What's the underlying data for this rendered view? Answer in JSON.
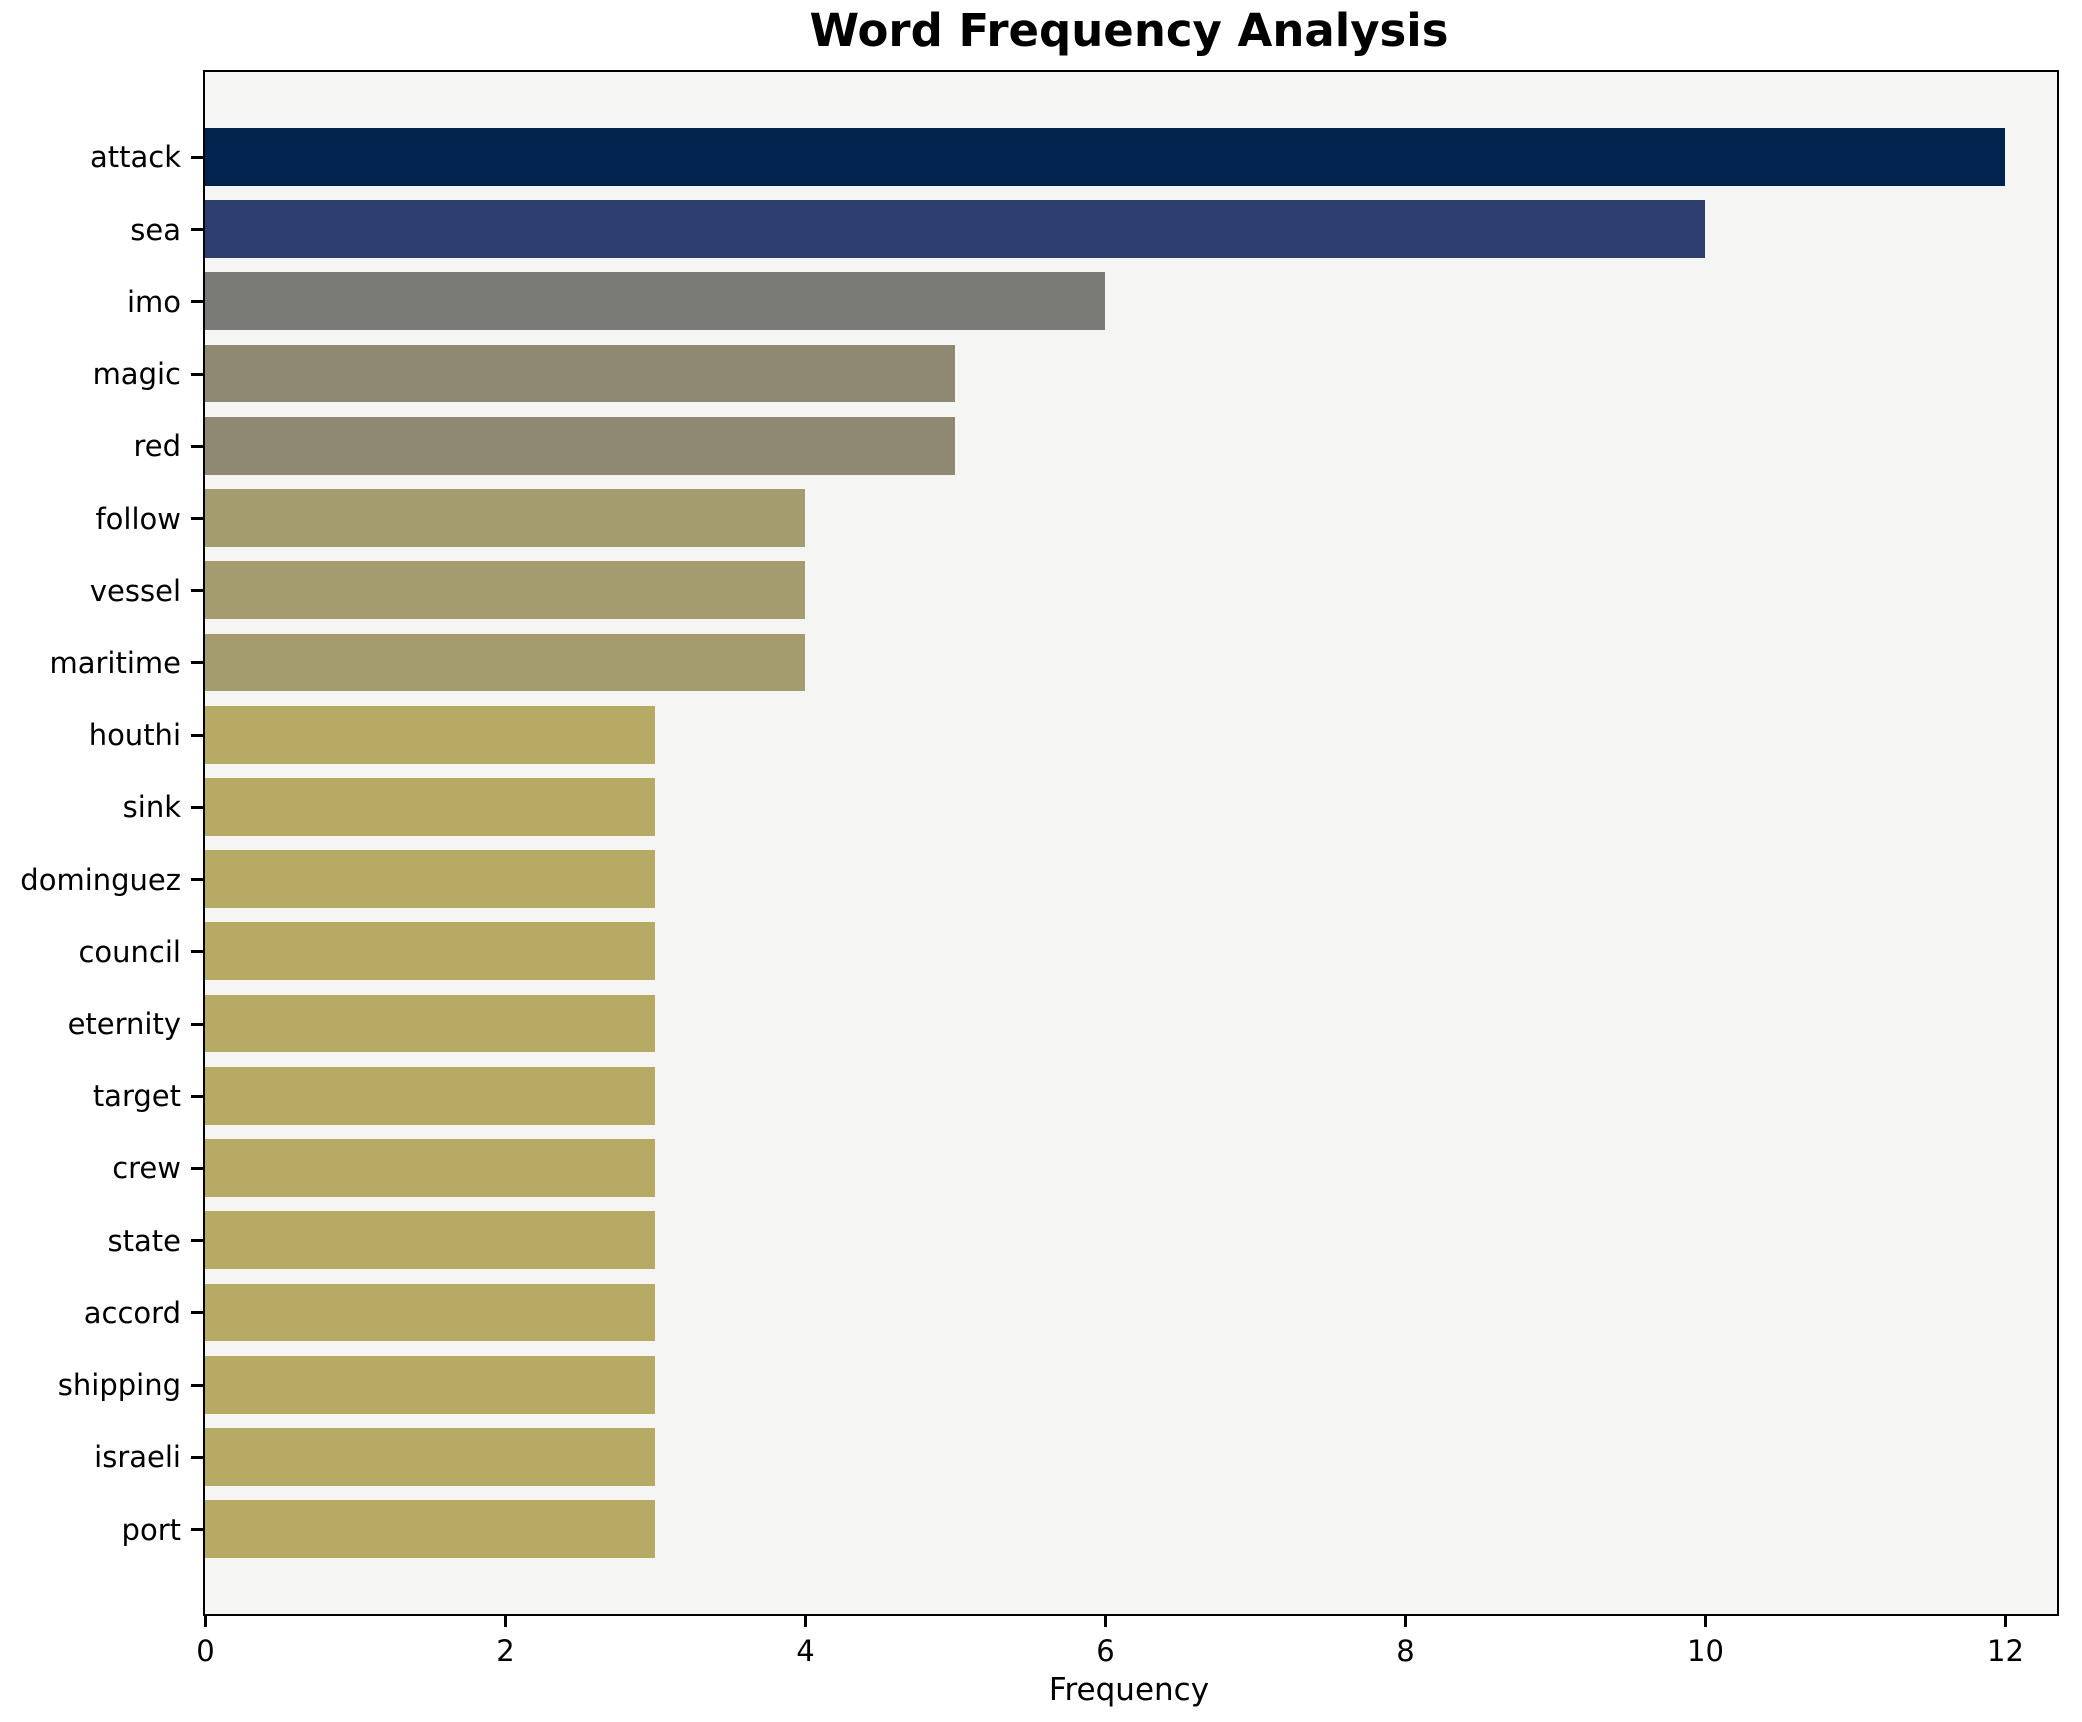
{
  "title": "Word Frequency Analysis",
  "chart_data": {
    "type": "bar",
    "orientation": "horizontal",
    "title": "Word Frequency Analysis",
    "xlabel": "Frequency",
    "ylabel": "",
    "categories": [
      "attack",
      "sea",
      "imo",
      "magic",
      "red",
      "follow",
      "vessel",
      "maritime",
      "houthi",
      "sink",
      "dominguez",
      "council",
      "eternity",
      "target",
      "crew",
      "state",
      "accord",
      "shipping",
      "israeli",
      "port"
    ],
    "values": [
      12,
      10,
      6,
      5,
      5,
      4,
      4,
      4,
      3,
      3,
      3,
      3,
      3,
      3,
      3,
      3,
      3,
      3,
      3,
      3
    ],
    "bar_colors": [
      "#02234e",
      "#2e3f6f",
      "#7a7a76",
      "#8f8873",
      "#8f8873",
      "#a49c6f",
      "#a49c6f",
      "#a49c6f",
      "#b6a964",
      "#b6a964",
      "#b6a964",
      "#b6a964",
      "#b6a964",
      "#b6a964",
      "#b6a964",
      "#b6a964",
      "#b6a964",
      "#b6a964",
      "#b6a964",
      "#b6a964"
    ],
    "xticks": [
      0,
      2,
      4,
      6,
      8,
      10,
      12
    ],
    "xlim": [
      0,
      12.35
    ],
    "grid": false,
    "legend": null,
    "plot_bg": "#f5f5f3",
    "fig_bg": "#ffffff",
    "spine_color": "#000000"
  }
}
